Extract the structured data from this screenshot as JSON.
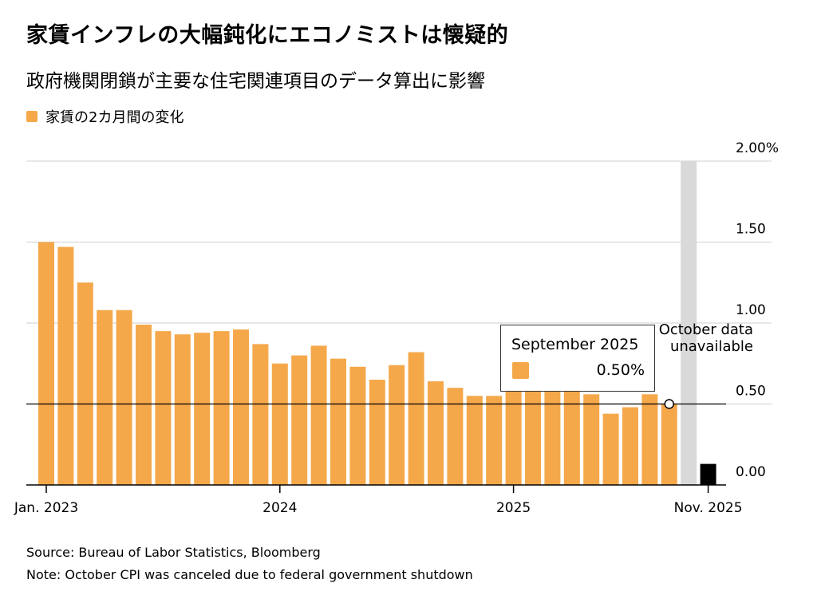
{
  "title": "家賃インフレの大幅鈍化にエコノミストは懐疑的",
  "subtitle": "政府機関閉鎖が主要な住宅関連項目のデータ算出に影響",
  "legend": {
    "label": "家賃の2カ月間の変化",
    "color": "#f5a84a"
  },
  "tooltip": {
    "label": "September 2025",
    "value": "0.50%"
  },
  "annotation": {
    "line1": "October data",
    "line2": "unavailable"
  },
  "footer": {
    "source": "Source: Bureau of Labor Statistics, Bloomberg",
    "note": "Note: October CPI was canceled due to federal government shutdown"
  },
  "chart_data": {
    "type": "bar",
    "categories": [
      "Jan. 2023",
      "Feb. 2023",
      "Mar. 2023",
      "Apr. 2023",
      "May 2023",
      "Jun. 2023",
      "Jul. 2023",
      "Aug. 2023",
      "Sep. 2023",
      "Oct. 2023",
      "Nov. 2023",
      "Dec. 2023",
      "Jan. 2024",
      "Feb. 2024",
      "Mar. 2024",
      "Apr. 2024",
      "May 2024",
      "Jun. 2024",
      "Jul. 2024",
      "Aug. 2024",
      "Sep. 2024",
      "Oct. 2024",
      "Nov. 2024",
      "Dec. 2024",
      "Jan. 2025",
      "Feb. 2025",
      "Mar. 2025",
      "Apr. 2025",
      "May 2025",
      "Jun. 2025",
      "Jul. 2025",
      "Aug. 2025",
      "Sep. 2025",
      "Oct. 2025",
      "Nov. 2025"
    ],
    "values": [
      1.5,
      1.47,
      1.25,
      1.08,
      1.08,
      0.99,
      0.95,
      0.93,
      0.94,
      0.95,
      0.96,
      0.87,
      0.75,
      0.8,
      0.86,
      0.78,
      0.73,
      0.65,
      0.74,
      0.82,
      0.64,
      0.6,
      0.55,
      0.55,
      0.58,
      0.58,
      0.58,
      0.58,
      0.56,
      0.44,
      0.48,
      0.56,
      0.5,
      null,
      0.13
    ],
    "highlight": {
      "index": 34,
      "color": "#000000"
    },
    "missing": {
      "index": 33,
      "color": "#d9d9d9"
    },
    "reference_line": 0.5,
    "ylim": [
      0,
      2.0
    ],
    "yticks": [
      "2.00%",
      "1.50",
      "1.00",
      "0.50",
      "0.00"
    ],
    "ytick_values": [
      2.0,
      1.5,
      1.0,
      0.5,
      0.0
    ],
    "xticks": [
      {
        "label": "Jan. 2023",
        "index": 0
      },
      {
        "label": "2024",
        "index": 12
      },
      {
        "label": "2025",
        "index": 24
      },
      {
        "label": "Nov. 2025",
        "index": 34
      }
    ],
    "bar_color": "#f5a84a",
    "grid": true,
    "legend_position": "top-left"
  }
}
